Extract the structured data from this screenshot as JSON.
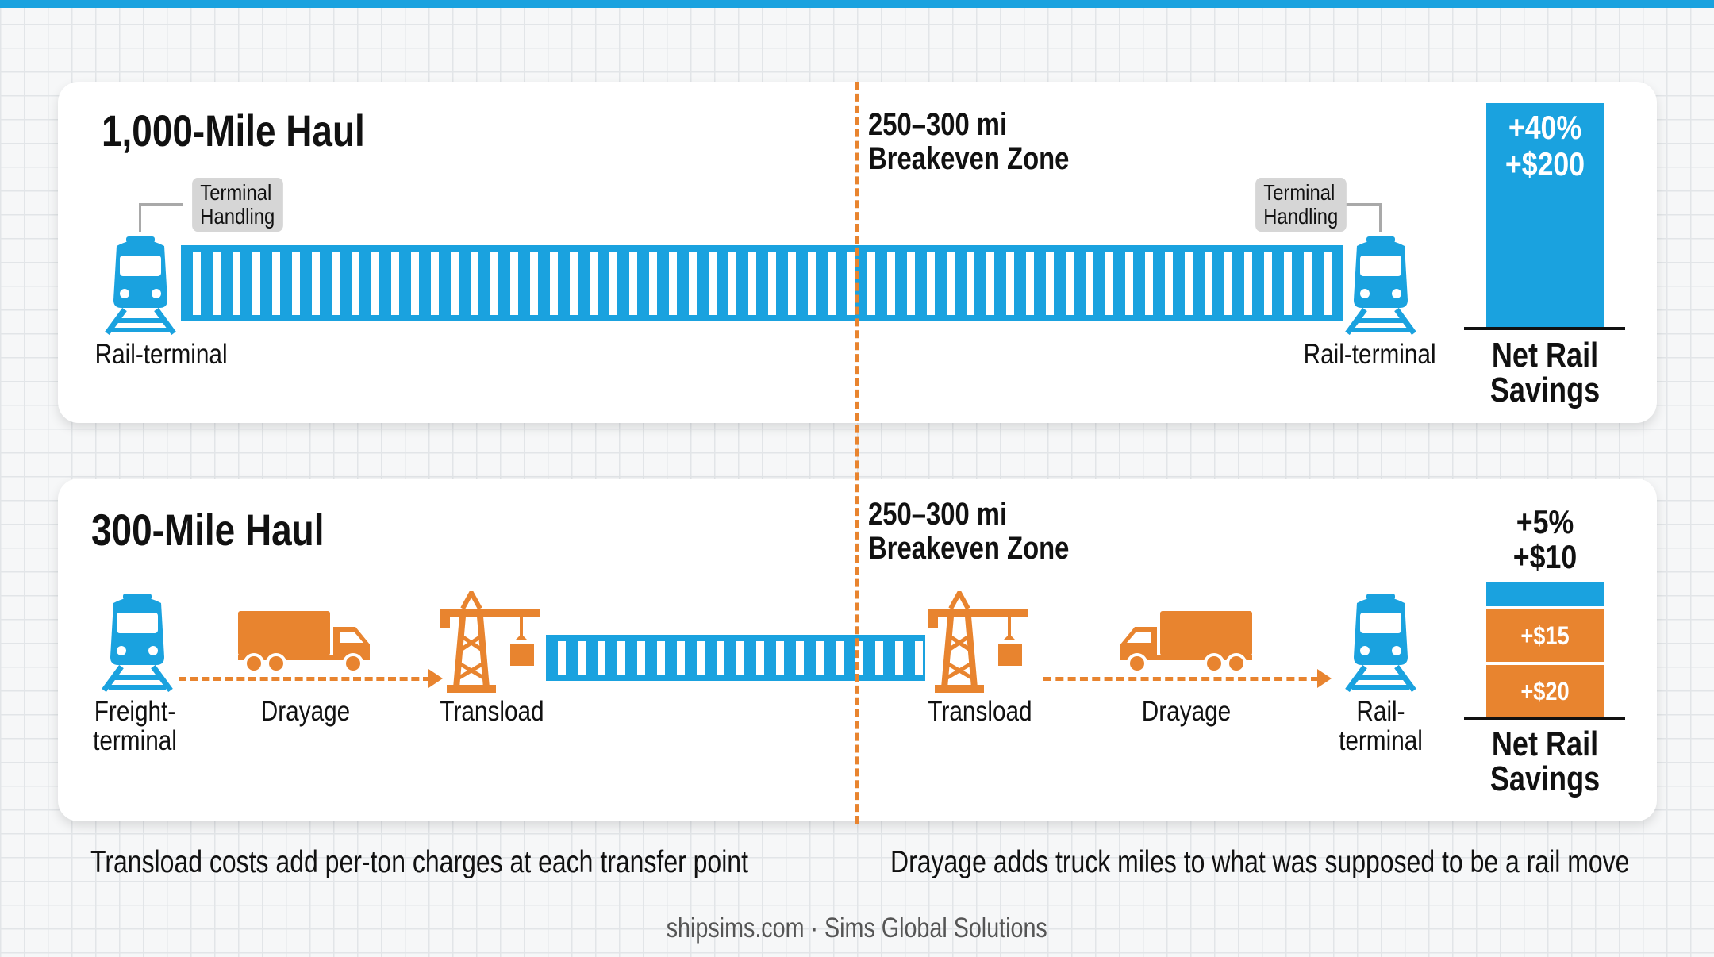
{
  "colors": {
    "rail_blue": "#1aa2df",
    "drayage_orange": "#e8842f"
  },
  "icons": [
    "train-icon",
    "truck-icon",
    "crane-icon"
  ],
  "panel_1000": {
    "title": "1,000-Mile Haul",
    "zone_line1": "250–300 mi",
    "zone_line2": "Breakeven Zone",
    "tag_left_line1": "Terminal",
    "tag_left_line2": "Handling",
    "tag_right_line1": "Terminal",
    "tag_right_line2": "Handling",
    "left_terminal": "Rail-terminal",
    "right_terminal": "Rail-terminal",
    "savings_line1": "+40%",
    "savings_line2": "+$200",
    "net_line1": "Net Rail",
    "net_line2": "Savings"
  },
  "panel_300": {
    "title": "300-Mile Haul",
    "zone_line1": "250–300 mi",
    "zone_line2": "Breakeven Zone",
    "stage_freight_line1": "Freight-",
    "stage_freight_line2": "terminal",
    "stage_drayage_left": "Drayage",
    "stage_transload_left": "Transload",
    "stage_transload_right": "Transload",
    "stage_drayage_right": "Drayage",
    "stage_rail_line1": "Rail-",
    "stage_rail_line2": "terminal",
    "savings_line1": "+5%",
    "savings_line2": "+$10",
    "seg_upper": "+$15",
    "seg_lower": "+$20",
    "net_line1": "Net Rail",
    "net_line2": "Savings"
  },
  "notes": {
    "left": "Transload costs add per-ton charges at each transfer point",
    "right": "Drayage adds truck miles to what was supposed to be a rail move"
  },
  "footer": "shipsims.com · Sims Global Solutions"
}
